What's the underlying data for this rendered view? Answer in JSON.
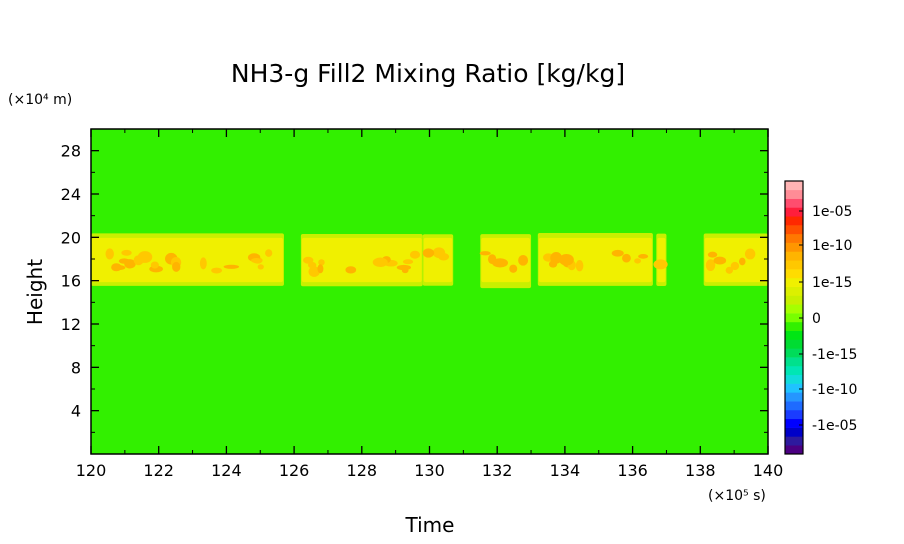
{
  "chart_data": {
    "type": "heatmap",
    "title": "NH3-g Fill2 Mixing Ratio [kg/kg]",
    "xlabel": "Time",
    "ylabel": "Height",
    "x_unit": "(×10⁵ s)",
    "y_unit": "(×10⁴ m)",
    "xlim": [
      120,
      140
    ],
    "ylim": [
      0,
      30
    ],
    "x_ticks": [
      "120",
      "122",
      "124",
      "126",
      "128",
      "130",
      "132",
      "134",
      "136",
      "138",
      "140"
    ],
    "y_ticks": [
      "4",
      "8",
      "12",
      "16",
      "20",
      "24",
      "28"
    ],
    "background_level": "0",
    "colorbar": {
      "labels": [
        "1e-05",
        "1e-10",
        "1e-15",
        "0",
        "-1e-15",
        "-1e-10",
        "-1e-05"
      ],
      "colors": [
        "#4b0082",
        "#2e1a9e",
        "#0000c8",
        "#0000ff",
        "#1a3cff",
        "#1e6bff",
        "#2596ff",
        "#1fc3ff",
        "#11dcdc",
        "#00e6b4",
        "#00e18c",
        "#00dc5a",
        "#00dc32",
        "#00e614",
        "#32f000",
        "#78ff00",
        "#a6ff00",
        "#c8f000",
        "#dcf000",
        "#f0f000",
        "#ffdc00",
        "#ffc800",
        "#ffb400",
        "#ff9600",
        "#ff7800",
        "#ff5000",
        "#ff2800",
        "#ff1e3c",
        "#ff4d6e",
        "#ff8c96",
        "#ffb4b4"
      ]
    },
    "band": {
      "height_range": [
        15.5,
        20.5
      ],
      "core_level": "~1e-12 (yellow-orange)",
      "edge_level": "~1e-16 (yellow-green)",
      "segments_time": [
        [
          120.0,
          125.7
        ],
        [
          126.2,
          129.8
        ],
        [
          129.8,
          130.7
        ],
        [
          131.5,
          133.0
        ],
        [
          133.2,
          136.6
        ],
        [
          136.7,
          137.0
        ],
        [
          138.1,
          140.0
        ]
      ]
    }
  }
}
